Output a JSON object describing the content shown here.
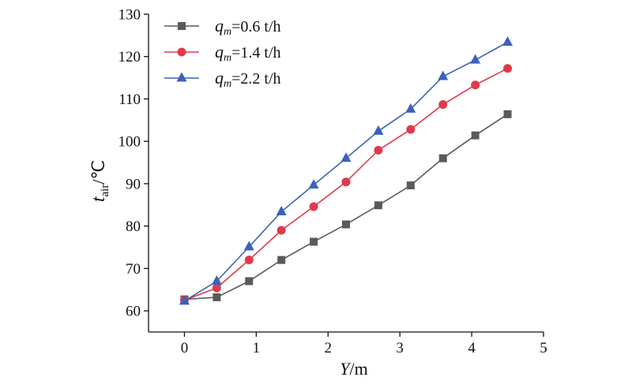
{
  "chart_data": {
    "type": "line",
    "title": "",
    "xlabel": {
      "var": "Y",
      "unit": "/m"
    },
    "ylabel": {
      "var": "t",
      "sub": "air",
      "unit": "/℃"
    },
    "xlim": [
      -0.5,
      5
    ],
    "ylim": [
      55,
      130
    ],
    "xticks": [
      0,
      1,
      2,
      3,
      4,
      5
    ],
    "yticks": [
      60,
      70,
      80,
      90,
      100,
      110,
      120,
      130
    ],
    "grid": false,
    "legend_position": "top-left",
    "x": [
      0,
      0.45,
      0.9,
      1.35,
      1.8,
      2.25,
      2.7,
      3.15,
      3.6,
      4.05,
      4.5
    ],
    "series": [
      {
        "name": "q_m=0.6 t/h",
        "legend": {
          "var": "q",
          "sub": "m",
          "value": "=0.6 t/h"
        },
        "color": "#5a5a5a",
        "marker": "square",
        "values": [
          62.7,
          63.2,
          67.0,
          72.0,
          76.3,
          80.4,
          84.9,
          89.6,
          96.0,
          101.4,
          106.4
        ]
      },
      {
        "name": "q_m=1.4 t/h",
        "legend": {
          "var": "q",
          "sub": "m",
          "value": "=1.4 t/h"
        },
        "color": "#e03a4a",
        "marker": "circle",
        "values": [
          62.5,
          65.4,
          72.0,
          79.0,
          84.6,
          90.4,
          97.9,
          102.8,
          108.7,
          113.3,
          117.2
        ]
      },
      {
        "name": "q_m=2.2 t/h",
        "legend": {
          "var": "q",
          "sub": "m",
          "value": "=2.2 t/h"
        },
        "color": "#3a62b8",
        "marker": "triangle",
        "values": [
          62.3,
          67.0,
          75.1,
          83.4,
          89.7,
          96.0,
          102.4,
          107.6,
          115.3,
          119.2,
          123.4
        ]
      }
    ]
  }
}
